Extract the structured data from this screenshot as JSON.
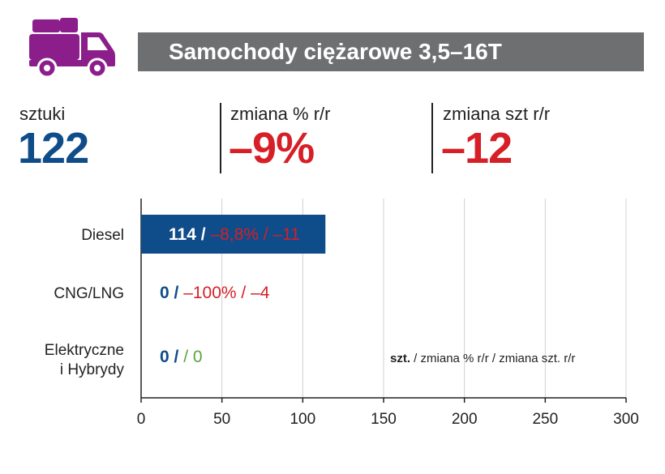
{
  "header": {
    "title": "Samochody ciężarowe 3,5–16T",
    "icon": "truck-icon"
  },
  "stats": [
    {
      "label": "sztuki",
      "value": "122",
      "color": "#0f4c8a"
    },
    {
      "label": "zmiana % r/r",
      "value": "–9%",
      "color": "#d61f26"
    },
    {
      "label": "zmiana szt r/r",
      "value": "–12",
      "color": "#d61f26"
    }
  ],
  "colors": {
    "blue": "#0f4c8a",
    "red": "#d61f26",
    "green": "#5aa43a",
    "bar": "#0f4c8a",
    "purple": "#8c1e8c",
    "title_bg": "#6e6f71"
  },
  "chart_data": {
    "type": "bar",
    "orientation": "horizontal",
    "categories": [
      "Diesel",
      "CNG/LNG",
      "Elektryczne i Hybrydy"
    ],
    "category_lines": [
      [
        "Diesel"
      ],
      [
        "CNG/LNG"
      ],
      [
        "Elektryczne",
        "i Hybrydy"
      ]
    ],
    "values": [
      114,
      0,
      0
    ],
    "labels": [
      {
        "count": "114",
        "pct": "–8,8%",
        "change": "–11",
        "change_color": "red"
      },
      {
        "count": "0",
        "pct": "–100%",
        "change": "–4",
        "change_color": "red"
      },
      {
        "count": "0",
        "pct": "",
        "change": "0",
        "change_color": "green"
      }
    ],
    "xlim": [
      0,
      300
    ],
    "xticks": [
      0,
      50,
      100,
      150,
      200,
      250,
      300
    ],
    "grid": true,
    "legend": {
      "bold": "szt.",
      "rest": " / zmiana % r/r / zmiana szt. r/r"
    }
  }
}
